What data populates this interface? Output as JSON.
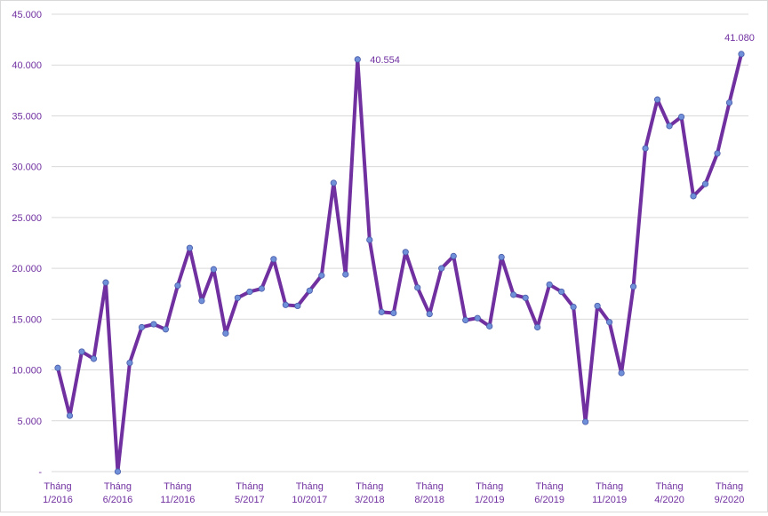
{
  "chart_data": {
    "type": "line",
    "title": "",
    "xlabel": "",
    "ylabel": "",
    "ylim": [
      0,
      45000
    ],
    "grid": true,
    "legend": "none",
    "y_ticks": [
      {
        "value": 0,
        "label": "-"
      },
      {
        "value": 5000,
        "label": "5.000"
      },
      {
        "value": 10000,
        "label": "10.000"
      },
      {
        "value": 15000,
        "label": "15.000"
      },
      {
        "value": 20000,
        "label": "20.000"
      },
      {
        "value": 25000,
        "label": "25.000"
      },
      {
        "value": 30000,
        "label": "30.000"
      },
      {
        "value": 35000,
        "label": "35.000"
      },
      {
        "value": 40000,
        "label": "40.000"
      },
      {
        "value": 45000,
        "label": "45.000"
      }
    ],
    "x_ticks": [
      {
        "index": 0,
        "line1": "Tháng",
        "line2": "1/2016"
      },
      {
        "index": 5,
        "line1": "Tháng",
        "line2": "6/2016"
      },
      {
        "index": 10,
        "line1": "Tháng",
        "line2": "11/2016"
      },
      {
        "index": 16,
        "line1": "Tháng",
        "line2": "5/2017"
      },
      {
        "index": 21,
        "line1": "Tháng",
        "line2": "10/2017"
      },
      {
        "index": 26,
        "line1": "Tháng",
        "line2": "3/2018"
      },
      {
        "index": 31,
        "line1": "Tháng",
        "line2": "8/2018"
      },
      {
        "index": 36,
        "line1": "Tháng",
        "line2": "1/2019"
      },
      {
        "index": 41,
        "line1": "Tháng",
        "line2": "6/2019"
      },
      {
        "index": 46,
        "line1": "Tháng",
        "line2": "11/2019"
      },
      {
        "index": 51,
        "line1": "Tháng",
        "line2": "4/2020"
      },
      {
        "index": 56,
        "line1": "Tháng",
        "line2": "9/2020"
      }
    ],
    "categories": [
      "1/2016",
      "2/2016",
      "3/2016",
      "4/2016",
      "5/2016",
      "6/2016",
      "7/2016",
      "8/2016",
      "9/2016",
      "10/2016",
      "11/2016",
      "12/2016",
      "1/2017",
      "2/2017",
      "3/2017",
      "4/2017",
      "5/2017",
      "6/2017",
      "7/2017",
      "8/2017",
      "9/2017",
      "10/2017",
      "11/2017",
      "12/2017",
      "1/2018",
      "2/2018",
      "3/2018",
      "4/2018",
      "5/2018",
      "6/2018",
      "7/2018",
      "8/2018",
      "9/2018",
      "10/2018",
      "11/2018",
      "12/2018",
      "1/2019",
      "2/2019",
      "3/2019",
      "4/2019",
      "5/2019",
      "6/2019",
      "7/2019",
      "8/2019",
      "9/2019",
      "10/2019",
      "11/2019",
      "12/2019",
      "1/2020",
      "2/2020",
      "3/2020",
      "4/2020",
      "5/2020",
      "6/2020",
      "7/2020",
      "8/2020",
      "9/2020",
      "10/2020"
    ],
    "series": [
      {
        "color": "#7030a0",
        "marker_color": "#6f8fd8",
        "values": [
          10200,
          5500,
          11800,
          11100,
          18600,
          0,
          10700,
          14200,
          14500,
          14000,
          18300,
          22000,
          16800,
          19900,
          13600,
          17100,
          17700,
          18000,
          20900,
          16400,
          16300,
          17800,
          19300,
          28400,
          19400,
          40554,
          22800,
          15700,
          15600,
          21600,
          18100,
          15500,
          20000,
          21200,
          14900,
          15100,
          14300,
          21100,
          17400,
          17100,
          14200,
          18400,
          17700,
          16200,
          4900,
          16300,
          14700,
          9700,
          18200,
          31800,
          36600,
          34000,
          34900,
          27100,
          28300,
          31300,
          36300,
          41080
        ]
      }
    ],
    "annotations": [
      {
        "index": 25,
        "text": "40.554"
      },
      {
        "index": 57,
        "text": "41.080"
      }
    ]
  }
}
